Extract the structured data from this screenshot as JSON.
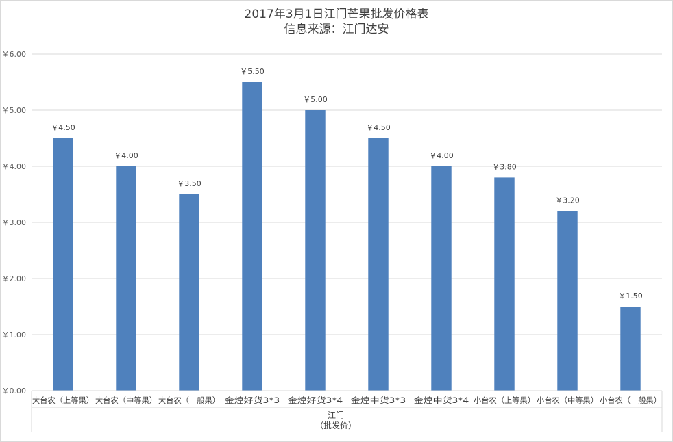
{
  "chart_data": {
    "type": "bar",
    "title": "2017年3月1日江门芒果批发价格表",
    "subtitle": "信息来源：江门达安",
    "xlabel": "",
    "ylabel": "",
    "group_label_line1": "江门",
    "group_label_line2": "（批发价）",
    "categories": [
      "大台农（上等果）",
      "大台农（中等果）",
      "大台农（一般果）",
      "金煌好货3*3",
      "金煌好货3*4",
      "金煌中货3*3",
      "金煌中货3*4",
      "小台农（上等果）",
      "小台农（中等果）",
      "小台农（一般果）"
    ],
    "values": [
      4.5,
      4.0,
      3.5,
      5.5,
      5.0,
      4.5,
      4.0,
      3.8,
      3.2,
      1.5
    ],
    "value_labels": [
      "￥4.50",
      "￥4.00",
      "￥3.50",
      "￥5.50",
      "￥5.00",
      "￥4.50",
      "￥4.00",
      "￥3.80",
      "￥3.20",
      "￥1.50"
    ],
    "ylim": [
      0,
      6
    ],
    "yticks": [
      0,
      1,
      2,
      3,
      4,
      5,
      6
    ],
    "ytick_labels": [
      "￥0.00",
      "￥1.00",
      "￥2.00",
      "￥3.00",
      "￥4.00",
      "￥5.00",
      "￥6.00"
    ],
    "grid": true,
    "legend": "none",
    "bar_color": "#4f81bd"
  }
}
